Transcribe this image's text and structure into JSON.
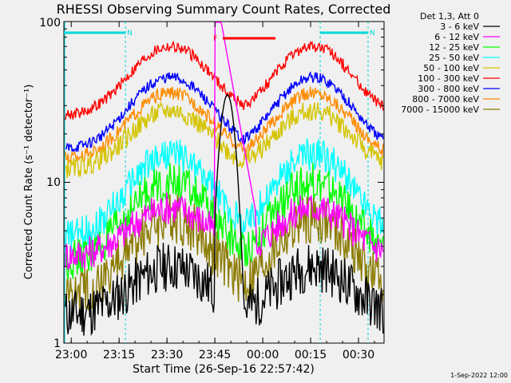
{
  "chart_data": {
    "type": "line",
    "title": "RHESSI Observing Summary Count Rates, Corrected",
    "xlabel": "Start Time (26-Sep-16 22:57:42)",
    "ylabel": "Corrected Count Rate (s⁻¹ detector⁻¹)",
    "y_scale": "log",
    "ylim": [
      1,
      100
    ],
    "x_ticks": [
      "23:00",
      "23:15",
      "23:30",
      "23:45",
      "00:00",
      "00:15",
      "00:30"
    ],
    "y_ticks": [
      "1",
      "10",
      "100"
    ],
    "legend_title": "Det 1,3, Att 0",
    "legend_position": "right",
    "footer": "1-Sep-2022 12:00",
    "flag_bars": [
      {
        "label": "N",
        "color": "#00d8d8",
        "segments": [
          [
            "22:57:42",
            "23:17:00"
          ],
          [
            "00:18:00",
            "00:33:00"
          ]
        ]
      },
      {
        "label": "F",
        "color": "#ff0000",
        "segments": [
          [
            "23:47:30",
            "00:04:00"
          ]
        ]
      }
    ],
    "series": [
      {
        "name": "3 - 6 keV",
        "color": "#000000",
        "values": []
      },
      {
        "name": "6 - 12 keV",
        "color": "#ff00ff",
        "values": []
      },
      {
        "name": "12 - 25 keV",
        "color": "#00ff00",
        "values": []
      },
      {
        "name": "25 - 50 keV",
        "color": "#00ffff",
        "values": []
      },
      {
        "name": "50 - 100 keV",
        "color": "#d4c400",
        "values": []
      },
      {
        "name": "100 - 300 keV",
        "color": "#ff0000",
        "values": []
      },
      {
        "name": "300 - 800 keV",
        "color": "#0000ff",
        "values": []
      },
      {
        "name": "800 - 7000 keV",
        "color": "#ff8c00",
        "values": []
      },
      {
        "name": "7000 - 15000 keV",
        "color": "#8b7b00",
        "values": []
      }
    ]
  }
}
